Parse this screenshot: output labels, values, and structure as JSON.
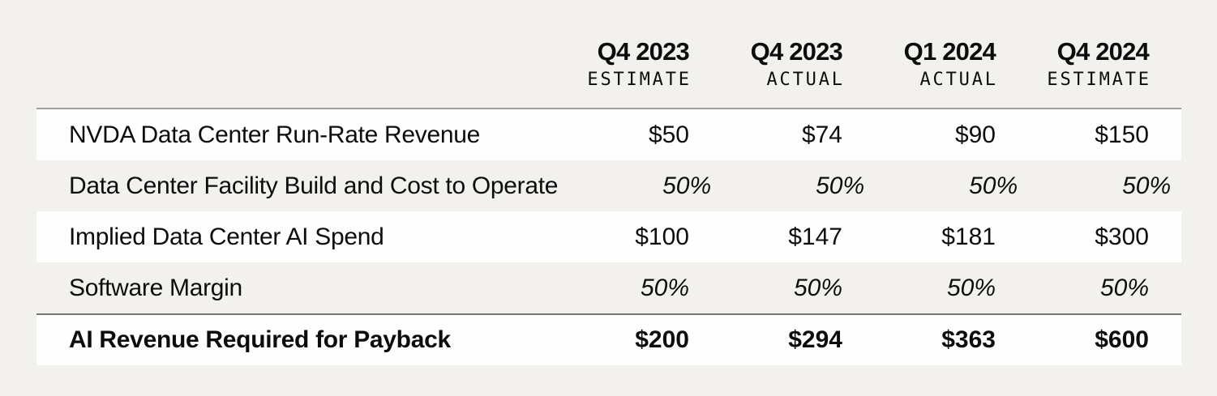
{
  "figure": {
    "background_color": "#f2f1ee",
    "row_highlight_color": "#fefefe",
    "text_color": "#0d0d0d",
    "header_rule_color": "#a29f9b",
    "total_rule_color": "#777471"
  },
  "chart_data": {
    "type": "table",
    "columns": [
      {
        "period": "Q4 2023",
        "kind": "ESTIMATE"
      },
      {
        "period": "Q4 2023",
        "kind": "ACTUAL"
      },
      {
        "period": "Q1 2024",
        "kind": "ACTUAL"
      },
      {
        "period": "Q4 2024",
        "kind": "ESTIMATE"
      }
    ],
    "rows": [
      {
        "label": "NVDA Data Center Run-Rate Revenue",
        "values": [
          "$50",
          "$74",
          "$90",
          "$150"
        ],
        "assumption": false,
        "total": false
      },
      {
        "label": "Data Center Facility Build and Cost to Operate",
        "values": [
          "50%",
          "50%",
          "50%",
          "50%"
        ],
        "assumption": true,
        "total": false
      },
      {
        "label": "Implied Data Center AI Spend",
        "values": [
          "$100",
          "$147",
          "$181",
          "$300"
        ],
        "assumption": false,
        "total": false
      },
      {
        "label": "Software Margin",
        "values": [
          "50%",
          "50%",
          "50%",
          "50%"
        ],
        "assumption": true,
        "total": false
      },
      {
        "label": "AI Revenue Required for Payback",
        "values": [
          "$200",
          "$294",
          "$363",
          "$600"
        ],
        "assumption": false,
        "total": true
      }
    ]
  }
}
